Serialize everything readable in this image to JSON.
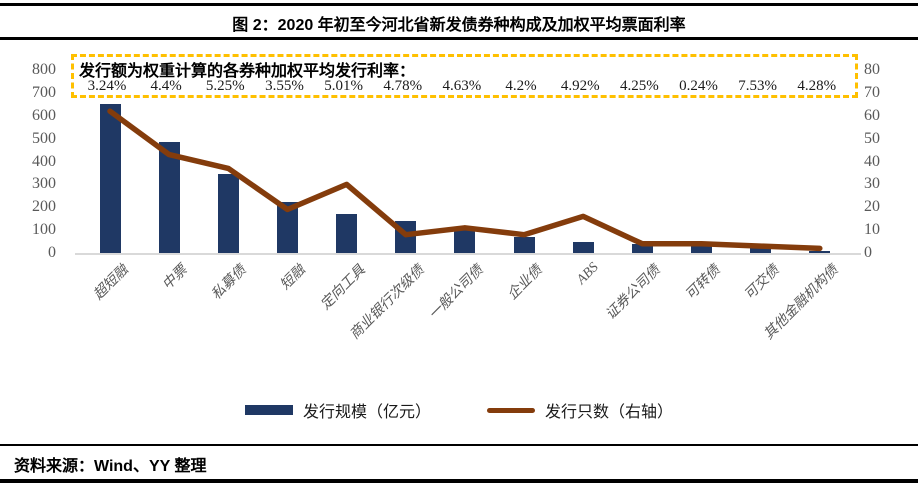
{
  "header": {
    "title": "图 2：2020 年初至今河北省新发债券种构成及加权平均票面利率"
  },
  "annotation": {
    "heading": "发行额为权重计算的各券种加权平均发行利率：",
    "border_color": "#FFC000"
  },
  "chart_data": {
    "type": "bar+line",
    "title": "2020 年初至今河北省新发债券种构成及加权平均票面利率",
    "categories": [
      "超短融",
      "中票",
      "私募债",
      "短融",
      "定向工具",
      "商业银行次级债",
      "一般公司债",
      "企业债",
      "ABS",
      "证券公司债",
      "可转债",
      "可交债",
      "其他金融机构债"
    ],
    "series": [
      {
        "name": "发行规模（亿元）",
        "type": "bar",
        "axis": "left",
        "color": "#1F3864",
        "values": [
          650,
          485,
          345,
          225,
          170,
          140,
          110,
          70,
          50,
          40,
          40,
          20,
          10
        ]
      },
      {
        "name": "发行只数（右轴）",
        "type": "line",
        "axis": "right",
        "color": "#843C0C",
        "values": [
          62,
          43,
          37,
          19,
          30,
          8,
          11,
          8,
          16,
          4,
          4,
          3,
          2
        ]
      }
    ],
    "weighted_avg_rates": [
      "3.24%",
      "4.4%",
      "5.25%",
      "3.55%",
      "5.01%",
      "4.78%",
      "4.63%",
      "4.2%",
      "4.92%",
      "4.25%",
      "0.24%",
      "7.53%",
      "4.28%"
    ],
    "left_axis": {
      "min": 0,
      "max": 800,
      "step": 100
    },
    "right_axis": {
      "min": 0,
      "max": 80,
      "step": 10
    },
    "grid": false,
    "legend_position": "bottom"
  },
  "footer": {
    "source": "资料来源：Wind、YY 整理"
  }
}
